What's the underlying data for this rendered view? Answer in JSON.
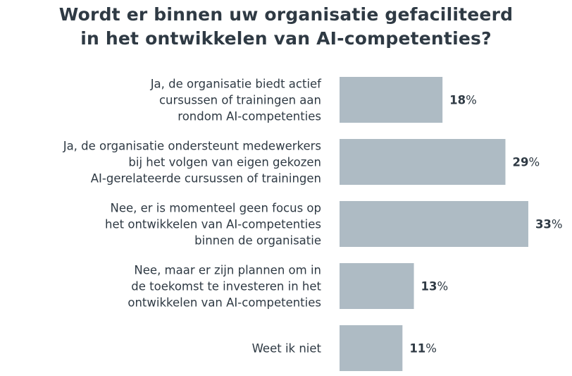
{
  "header": {
    "title_line1": "Wordt er binnen uw organisatie gefaciliteerd",
    "title_line2": "in het ontwikkelen van AI-competenties?"
  },
  "colors": {
    "bar": "#aebbc4",
    "text": "#2f3a44"
  },
  "chart_data": {
    "type": "bar",
    "orientation": "horizontal",
    "title": "Wordt er binnen uw organisatie gefaciliteerd in het ontwikkelen van AI-competenties?",
    "categories": [
      [
        "Ja, de organisatie biedt actief",
        "cursussen of trainingen aan",
        "rondom AI-competenties"
      ],
      [
        "Ja, de organisatie ondersteunt medewerkers",
        "bij het volgen van eigen gekozen",
        "AI-gerelateerde cursussen of trainingen"
      ],
      [
        "Nee, er is momenteel geen focus op",
        "het ontwikkelen van AI-competenties",
        "binnen de organisatie"
      ],
      [
        "Nee, maar er zijn plannen om in",
        "de toekomst te investeren in het",
        "ontwikkelen van AI-competenties"
      ],
      [
        "Weet ik niet"
      ]
    ],
    "values": [
      18,
      29,
      33,
      13,
      11
    ],
    "value_suffix": "%",
    "xlabel": "",
    "ylabel": "",
    "grid": false,
    "legend": "none"
  }
}
